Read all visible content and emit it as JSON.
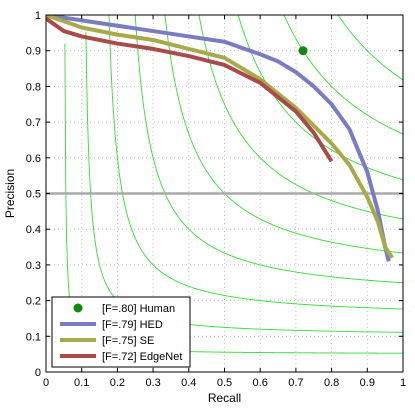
{
  "chart_data": {
    "type": "line",
    "title": "",
    "xlabel": "Recall",
    "ylabel": "Precision",
    "xlim": [
      0,
      1
    ],
    "ylim": [
      0,
      1
    ],
    "grid": true,
    "legend_position": "bottom-left",
    "x_ticks": [
      "0",
      "0.1",
      "0.2",
      "0.3",
      "0.4",
      "0.5",
      "0.6",
      "0.7",
      "0.8",
      "0.9",
      "1"
    ],
    "y_ticks": [
      "0",
      "0.1",
      "0.2",
      "0.3",
      "0.4",
      "0.5",
      "0.6",
      "0.7",
      "0.8",
      "0.9",
      "1"
    ],
    "reference_line": {
      "y": 0.5,
      "color": "#aaaaaa"
    },
    "iso_f_contours": {
      "color": "#33dd33",
      "f_values": [
        0.1,
        0.2,
        0.3,
        0.4,
        0.5,
        0.6,
        0.7,
        0.8,
        0.9
      ]
    },
    "human_point": {
      "label": "[F=.80] Human",
      "x": 0.72,
      "y": 0.9,
      "color": "#118811"
    },
    "series": [
      {
        "name": "[F=.79] HED",
        "color": "#7b7bc4",
        "x": [
          0.0,
          0.1,
          0.2,
          0.3,
          0.4,
          0.5,
          0.6,
          0.65,
          0.7,
          0.75,
          0.8,
          0.85,
          0.9,
          0.93,
          0.95,
          0.96
        ],
        "y": [
          1.0,
          0.985,
          0.97,
          0.955,
          0.94,
          0.925,
          0.89,
          0.87,
          0.84,
          0.8,
          0.75,
          0.68,
          0.56,
          0.45,
          0.35,
          0.31
        ]
      },
      {
        "name": "[F=.75] SE",
        "color": "#a8a94b",
        "x": [
          0.0,
          0.1,
          0.2,
          0.3,
          0.4,
          0.5,
          0.6,
          0.65,
          0.7,
          0.75,
          0.8,
          0.85,
          0.9,
          0.93,
          0.95,
          0.97
        ],
        "y": [
          1.0,
          0.965,
          0.945,
          0.93,
          0.905,
          0.88,
          0.82,
          0.78,
          0.74,
          0.69,
          0.64,
          0.58,
          0.49,
          0.42,
          0.35,
          0.32
        ]
      },
      {
        "name": "[F=.72] EdgeNet",
        "color": "#aa4a4a",
        "x": [
          0.0,
          0.05,
          0.1,
          0.2,
          0.3,
          0.4,
          0.5,
          0.6,
          0.7,
          0.75,
          0.8
        ],
        "y": [
          0.99,
          0.955,
          0.94,
          0.92,
          0.905,
          0.885,
          0.86,
          0.81,
          0.73,
          0.67,
          0.59
        ]
      }
    ]
  }
}
